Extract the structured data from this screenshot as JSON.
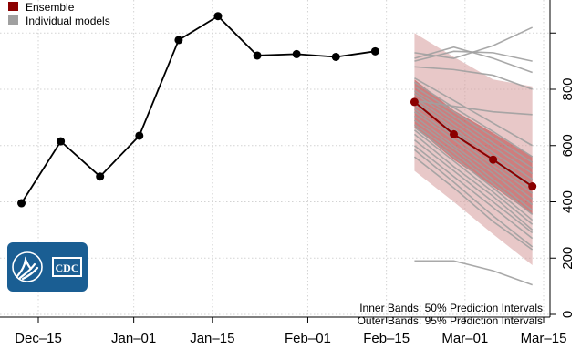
{
  "chart_data": {
    "type": "line",
    "title": "",
    "xlabel": "",
    "ylabel": "",
    "ylim": [
      0,
      1030
    ],
    "y_axis_position": "right",
    "y_ticks": [
      0,
      200,
      400,
      600,
      800
    ],
    "y_tick_labels": [
      "0",
      "200",
      "400",
      "600",
      "800"
    ],
    "x_ticks": [
      "2020-12-15",
      "2021-01-01",
      "2021-01-15",
      "2021-02-01",
      "2021-02-15",
      "2021-03-01",
      "2021-03-15"
    ],
    "x_tick_labels": [
      "Dec–15",
      "Jan–01",
      "Jan–15",
      "Feb–01",
      "Feb–15",
      "Mar–01",
      "Mar–15"
    ],
    "xlim": [
      "2020-12-09",
      "2021-03-16"
    ],
    "grid": true,
    "legend": {
      "placement": "top-left",
      "entries": [
        {
          "label": "Ensemble",
          "color": "#8b0000"
        },
        {
          "label": "Individual models",
          "color": "#a0a0a0"
        }
      ]
    },
    "observed": {
      "color": "#000000",
      "x": [
        "2020-12-12",
        "2020-12-19",
        "2020-12-26",
        "2021-01-02",
        "2021-01-09",
        "2021-01-16",
        "2021-01-23",
        "2021-01-30",
        "2021-02-06",
        "2021-02-13"
      ],
      "y": [
        395,
        615,
        490,
        635,
        975,
        1060,
        920,
        925,
        915,
        935
      ]
    },
    "forecast": {
      "x": [
        "2021-02-20",
        "2021-02-27",
        "2021-03-06",
        "2021-03-13"
      ],
      "ensemble": {
        "color": "#8b0000",
        "y": [
          755,
          640,
          550,
          455
        ]
      },
      "band50": {
        "color": "#b22222",
        "lower": [
          665,
          550,
          455,
          355
        ],
        "upper": [
          835,
          725,
          645,
          560
        ]
      },
      "band95": {
        "color": "#d9a3a3",
        "lower": [
          510,
          400,
          285,
          175
        ],
        "upper": [
          1000,
          915,
          835,
          810
        ]
      },
      "individual_models": {
        "color": "#a0a0a0",
        "series": [
          [
            190,
            190,
            155,
            105
          ],
          [
            560,
            450,
            330,
            230
          ],
          [
            585,
            470,
            350,
            240
          ],
          [
            600,
            490,
            380,
            270
          ],
          [
            620,
            510,
            400,
            290
          ],
          [
            640,
            525,
            420,
            300
          ],
          [
            655,
            545,
            435,
            320
          ],
          [
            665,
            560,
            450,
            335
          ],
          [
            675,
            575,
            465,
            355
          ],
          [
            690,
            590,
            480,
            370
          ],
          [
            705,
            600,
            500,
            390
          ],
          [
            720,
            620,
            515,
            410
          ],
          [
            730,
            635,
            530,
            430
          ],
          [
            745,
            650,
            545,
            445
          ],
          [
            760,
            660,
            560,
            460
          ],
          [
            770,
            675,
            575,
            480
          ],
          [
            785,
            690,
            595,
            500
          ],
          [
            795,
            705,
            610,
            520
          ],
          [
            810,
            720,
            630,
            540
          ],
          [
            825,
            735,
            650,
            560
          ],
          [
            840,
            760,
            680,
            600
          ],
          [
            760,
            740,
            720,
            710
          ],
          [
            880,
            870,
            850,
            800
          ],
          [
            900,
            935,
            930,
            900
          ],
          [
            910,
            950,
            910,
            860
          ],
          [
            930,
            910,
            955,
            1020
          ]
        ]
      }
    },
    "annotations": [
      "Inner Bands: 50% Prediction Intervals",
      "Outer Bands: 95% Prediction Intervals"
    ]
  },
  "logo": {
    "text": "CDC",
    "color": "#1a5e93"
  }
}
